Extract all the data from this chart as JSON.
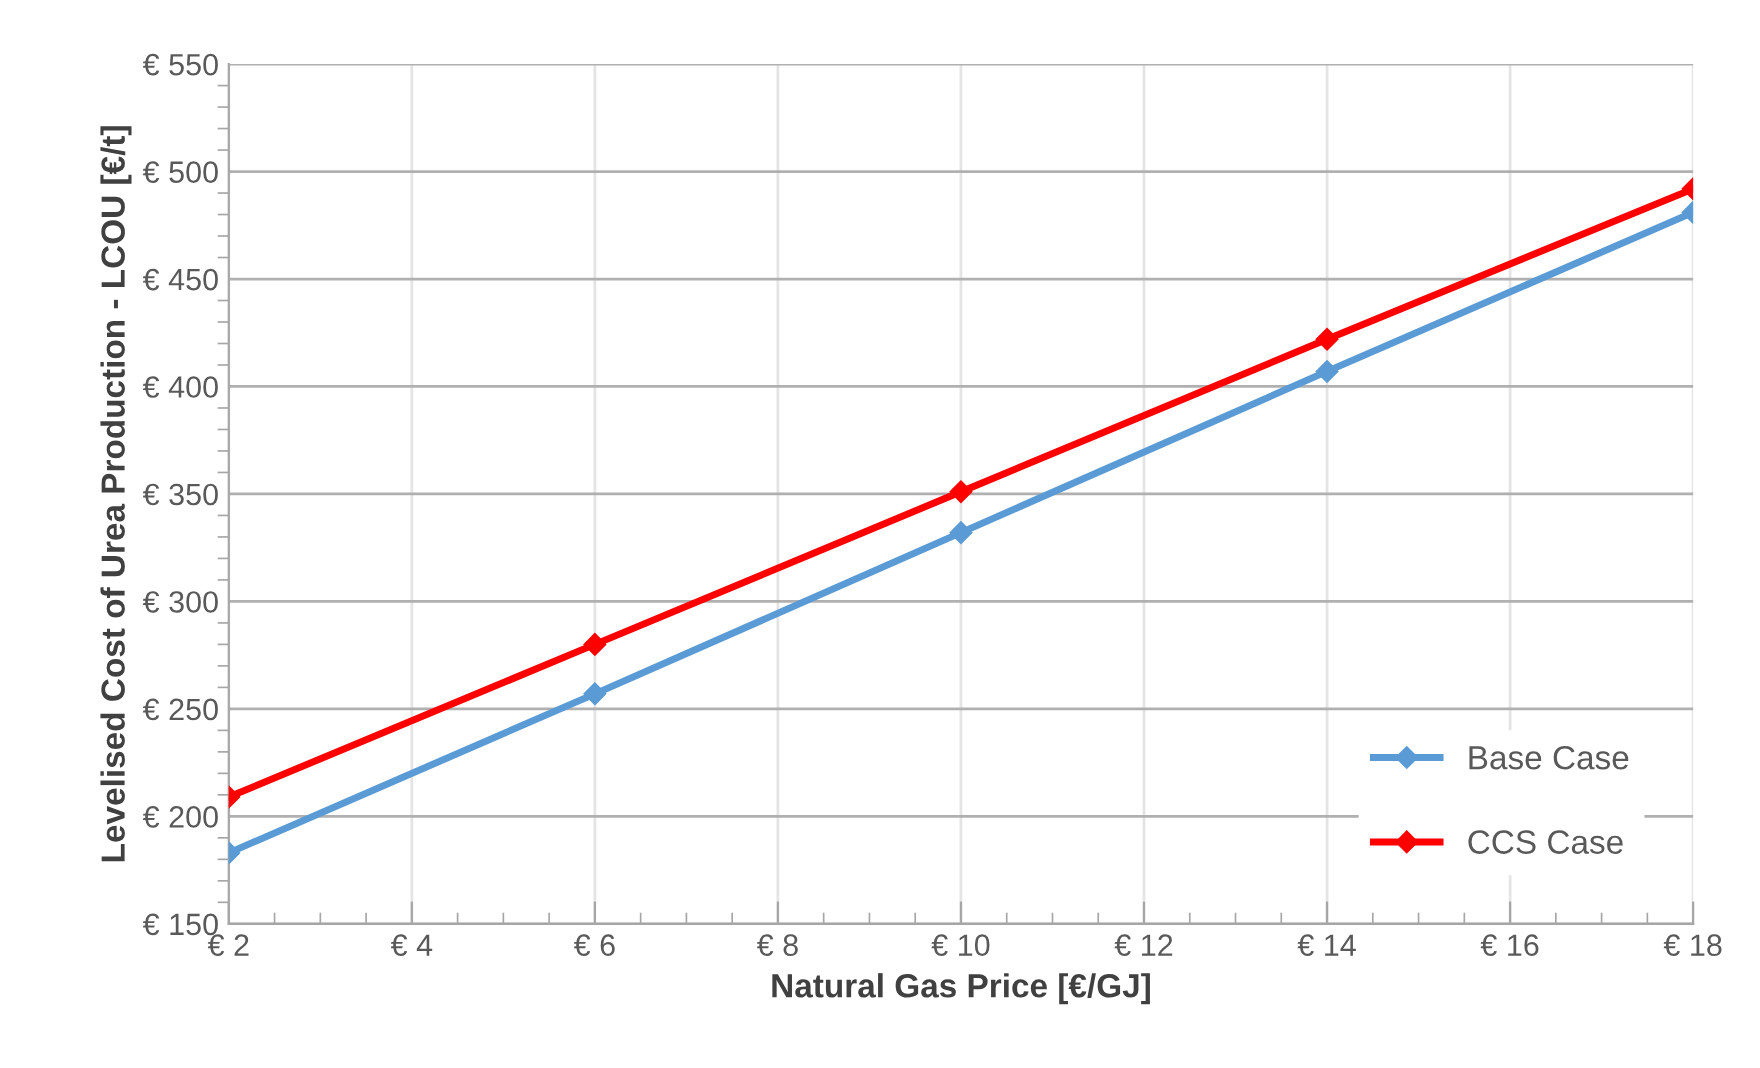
{
  "chart_data": {
    "type": "line",
    "xlabel": "Natural Gas Price [€/GJ]",
    "ylabel": "Levelised Cost of Urea Production - LCOU [€/t]",
    "x": [
      2,
      6,
      10,
      14,
      18
    ],
    "series": [
      {
        "name": "Base Case",
        "color": "#5b9bd5",
        "values": [
          183,
          257,
          332,
          407,
          481
        ]
      },
      {
        "name": "CCS Case",
        "color": "#ff0000",
        "values": [
          209,
          280,
          351,
          422,
          492
        ]
      }
    ],
    "xlim": [
      2,
      18
    ],
    "xticks": [
      {
        "value": 2,
        "label": "€ 2"
      },
      {
        "value": 4,
        "label": "€ 4"
      },
      {
        "value": 6,
        "label": "€ 6"
      },
      {
        "value": 8,
        "label": "€ 8"
      },
      {
        "value": 10,
        "label": "€ 10"
      },
      {
        "value": 12,
        "label": "€ 12"
      },
      {
        "value": 14,
        "label": "€ 14"
      },
      {
        "value": 16,
        "label": "€ 16"
      },
      {
        "value": 18,
        "label": "€ 18"
      }
    ],
    "ylim": [
      150,
      550
    ],
    "yticks": [
      {
        "value": 150,
        "label": "€ 150"
      },
      {
        "value": 200,
        "label": "€ 200"
      },
      {
        "value": 250,
        "label": "€ 250"
      },
      {
        "value": 300,
        "label": "€ 300"
      },
      {
        "value": 350,
        "label": "€ 350"
      },
      {
        "value": 400,
        "label": "€ 400"
      },
      {
        "value": 450,
        "label": "€ 450"
      },
      {
        "value": 500,
        "label": "€ 500"
      },
      {
        "value": 550,
        "label": "€ 550"
      }
    ],
    "grid": true,
    "legend": "bottom right",
    "marker": "diamond",
    "line_style": "solid"
  }
}
